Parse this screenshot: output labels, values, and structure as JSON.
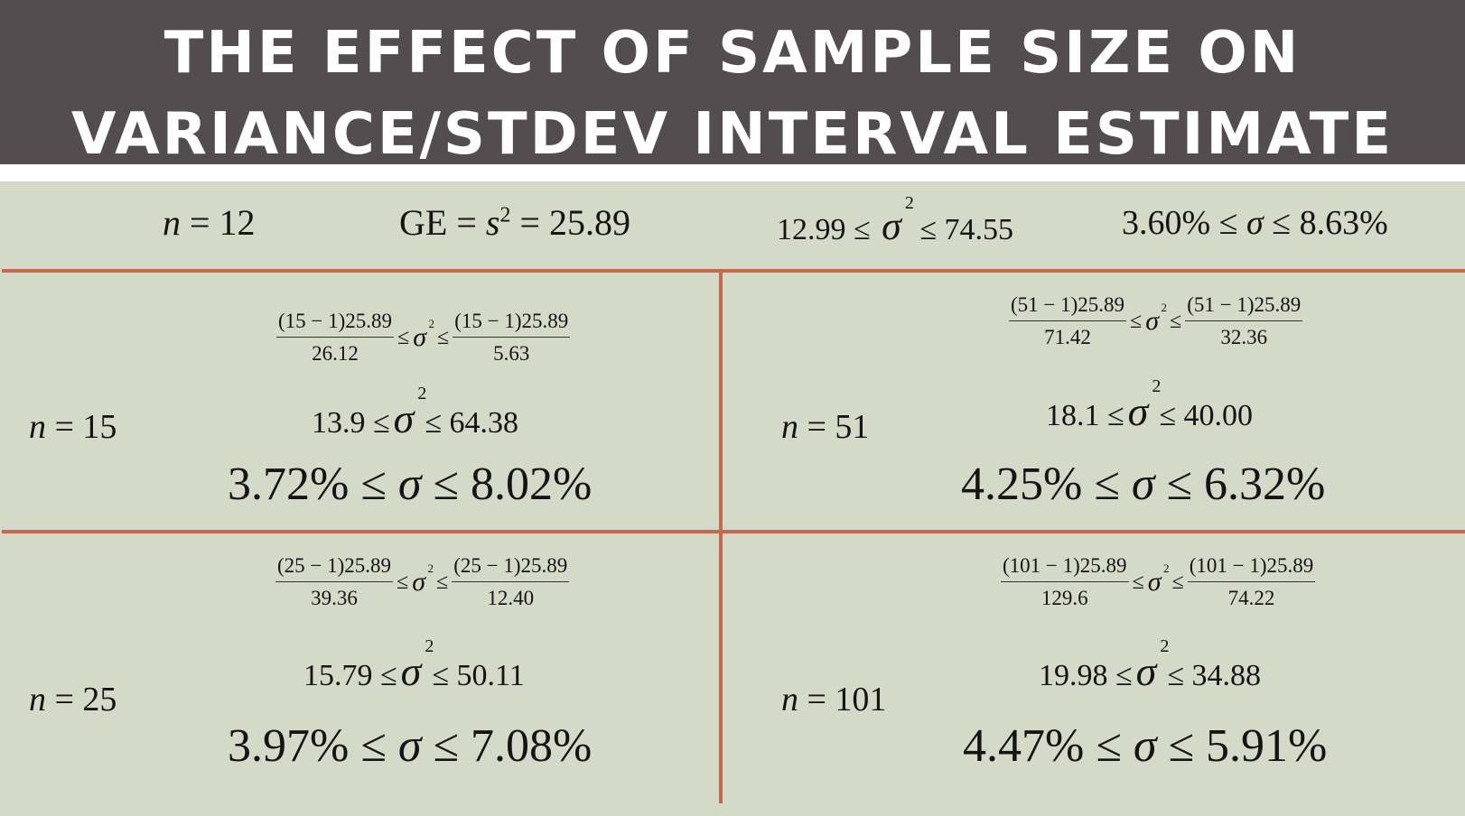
{
  "title": {
    "line1": "THE EFFECT OF SAMPLE SIZE ON",
    "line2": "VARIANCE/STDEV INTERVAL ESTIMATE"
  },
  "top_row": {
    "n_var": "n",
    "n_eq": " = 12",
    "ge_text": "GE = ",
    "s_var": "s",
    "s_exp": "2",
    "ge_value": " = 25.89",
    "var_low": "12.99 ≤ ",
    "var_high": " ≤ 74.55",
    "sd_low": "3.60% ≤ ",
    "sd_high": " ≤ 8.63%"
  },
  "symbols": {
    "sigma": "σ",
    "sq": "2",
    "le": "≤"
  },
  "cells": [
    {
      "n_var": "n",
      "n_eq": " = 15",
      "left_num": "(15 − 1)25.89",
      "left_den": "26.12",
      "right_num": "(15 − 1)25.89",
      "right_den": "5.63",
      "var_low": "13.9 ≤",
      "var_high": "≤ 64.38",
      "sd_low": "3.72% ≤ ",
      "sd_high": " ≤ 8.02%"
    },
    {
      "n_var": "n",
      "n_eq": " = 51",
      "left_num": "(51 − 1)25.89",
      "left_den": "71.42",
      "right_num": "(51 − 1)25.89",
      "right_den": "32.36",
      "var_low": "18.1 ≤",
      "var_high": "≤ 40.00",
      "sd_low": "4.25% ≤ ",
      "sd_high": " ≤ 6.32%"
    },
    {
      "n_var": "n",
      "n_eq": " = 25",
      "left_num": "(25 − 1)25.89",
      "left_den": "39.36",
      "right_num": "(25 − 1)25.89",
      "right_den": "12.40",
      "var_low": "15.79 ≤",
      "var_high": "≤ 50.11",
      "sd_low": "3.97% ≤ ",
      "sd_high": " ≤ 7.08%"
    },
    {
      "n_var": "n",
      "n_eq": " = 101",
      "left_num": "(101 − 1)25.89",
      "left_den": "129.6",
      "right_num": "(101 − 1)25.89",
      "right_den": "74.22",
      "var_low": "19.98 ≤",
      "var_high": "≤ 34.88",
      "sd_low": "4.47% ≤ ",
      "sd_high": " ≤ 5.91%"
    }
  ],
  "colors": {
    "header_bg": "#544d4f",
    "slide_bg": "#d5d9c8",
    "divider": "#c46a52"
  }
}
